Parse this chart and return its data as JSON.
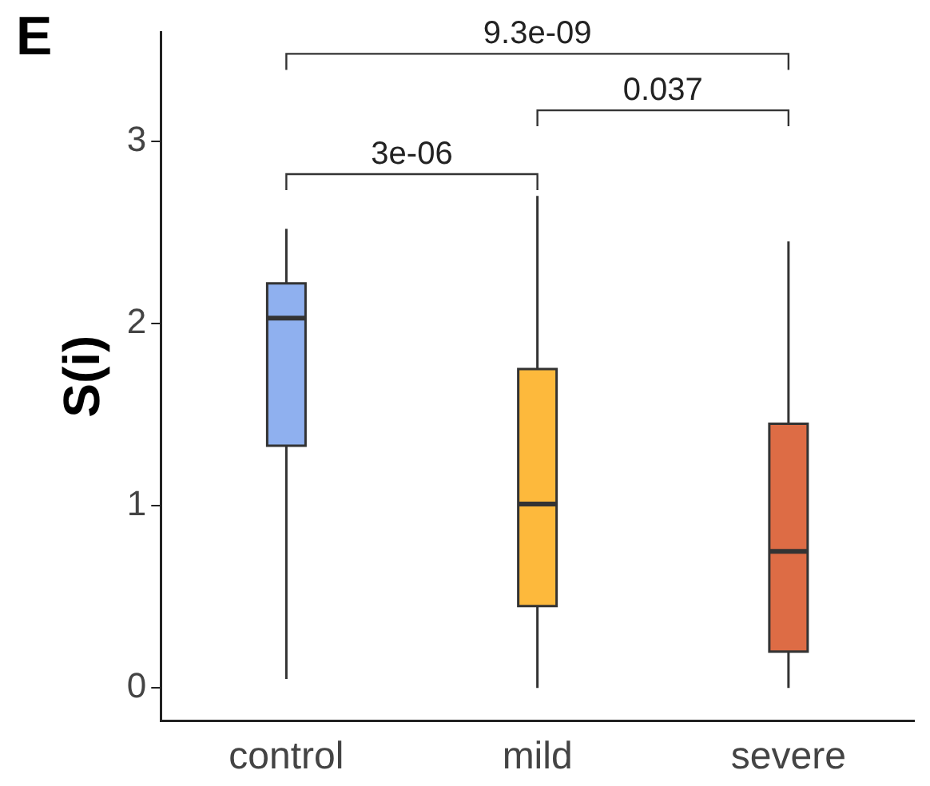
{
  "chart_data": {
    "type": "box",
    "ylabel": "S(i)",
    "categories": [
      "control",
      "mild",
      "severe"
    ],
    "colors": [
      "#8fb0ef",
      "#fdb93c",
      "#dd6c45"
    ],
    "boxes": [
      {
        "low": 0.05,
        "q1": 1.33,
        "median": 2.03,
        "q3": 2.22,
        "high": 2.52
      },
      {
        "low": 0,
        "q1": 0.45,
        "median": 1.01,
        "q3": 1.75,
        "high": 2.7
      },
      {
        "low": 0,
        "q1": 0.2,
        "median": 0.75,
        "q3": 1.45,
        "high": 2.45
      }
    ],
    "ylim": [
      -0.18,
      3.6
    ],
    "yticks": [
      0,
      1,
      2,
      3
    ],
    "grid": false,
    "legend": false,
    "annotations": [
      "E",
      "3e-06",
      "0.037",
      "9.3e-09"
    ]
  }
}
